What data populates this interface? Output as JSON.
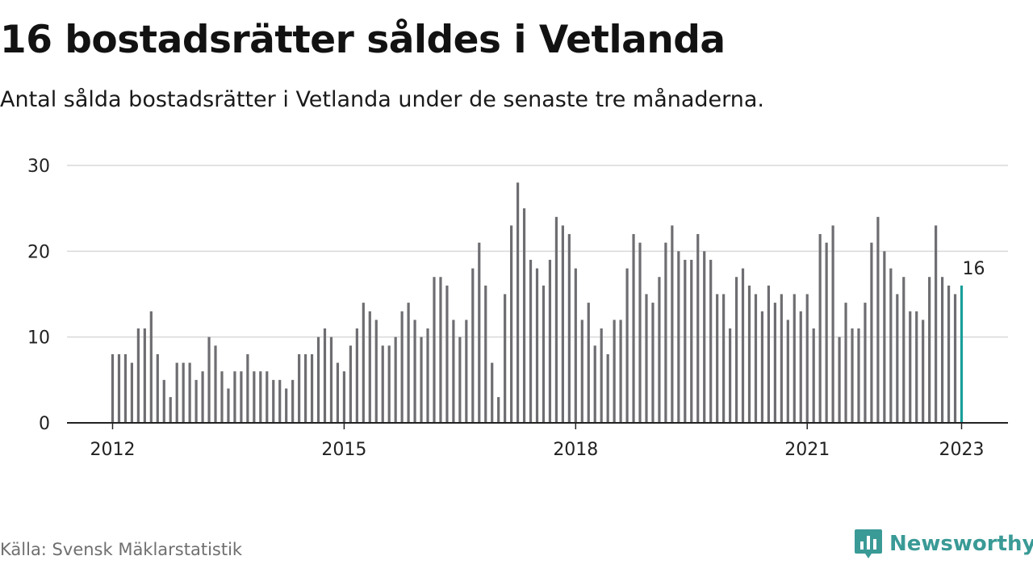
{
  "title": "16 bostadsrätter såldes i Vetlanda",
  "subtitle": "Antal sålda bostadsrätter i Vetlanda under de senaste tre månaderna.",
  "source": "Källa: Svensk Mäklarstatistik",
  "brand": "Newsworthy",
  "colors": {
    "bar": "#6e6e72",
    "highlight": "#1a9e9a",
    "grid": "#d9d9d9",
    "brand": "#3a9a96"
  },
  "chart_data": {
    "type": "bar",
    "title": "16 bostadsrätter såldes i Vetlanda",
    "subtitle": "Antal sålda bostadsrätter i Vetlanda under de senaste tre månaderna.",
    "x_ticks": [
      "2012",
      "2015",
      "2018",
      "2021",
      "2023"
    ],
    "y_ticks": [
      0,
      10,
      20,
      30
    ],
    "ylim": [
      0,
      30
    ],
    "grid": true,
    "highlight_label": "16",
    "values": [
      8,
      8,
      8,
      7,
      11,
      11,
      13,
      8,
      5,
      3,
      7,
      7,
      7,
      5,
      6,
      10,
      9,
      6,
      4,
      6,
      6,
      8,
      6,
      6,
      6,
      5,
      5,
      4,
      5,
      8,
      8,
      8,
      10,
      11,
      10,
      7,
      6,
      9,
      11,
      14,
      13,
      12,
      9,
      9,
      10,
      13,
      14,
      12,
      10,
      11,
      17,
      17,
      16,
      12,
      10,
      12,
      18,
      21,
      16,
      7,
      3,
      15,
      23,
      28,
      25,
      19,
      18,
      16,
      19,
      24,
      23,
      22,
      18,
      12,
      14,
      9,
      11,
      8,
      12,
      12,
      18,
      22,
      21,
      15,
      14,
      17,
      21,
      23,
      20,
      19,
      19,
      22,
      20,
      19,
      15,
      15,
      11,
      17,
      18,
      16,
      15,
      13,
      16,
      14,
      15,
      12,
      15,
      13,
      15,
      11,
      22,
      21,
      23,
      10,
      14,
      11,
      11,
      14,
      21,
      24,
      20,
      18,
      15,
      17,
      13,
      13,
      12,
      17,
      23,
      17,
      16,
      15,
      16
    ]
  }
}
